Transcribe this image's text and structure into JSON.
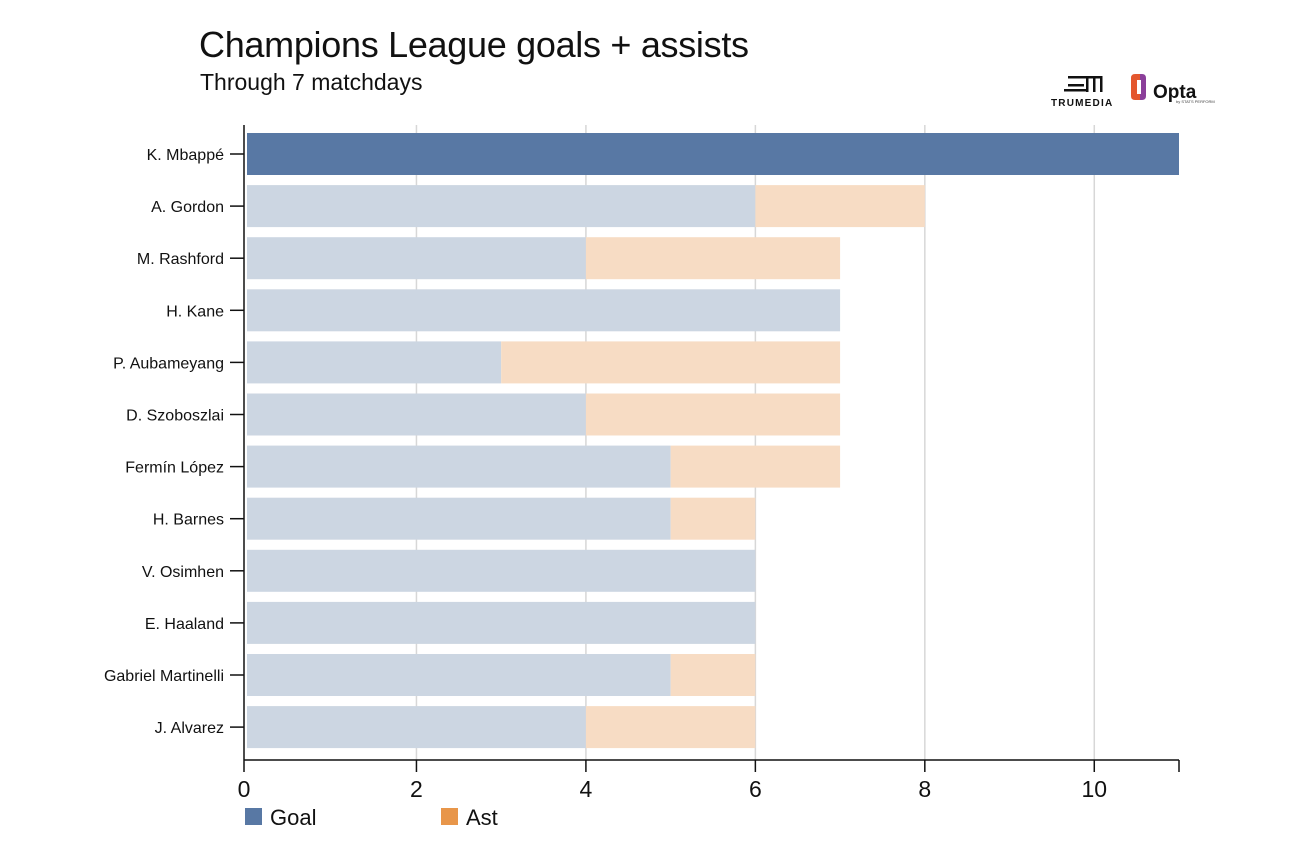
{
  "header": {
    "title": "Champions League goals + assists",
    "subtitle": "Through 7 matchdays"
  },
  "logos": {
    "trumedia": "TRUMEDIA",
    "opta": "Opta",
    "opta_sub": "by STATS PERFORM"
  },
  "colors": {
    "goal": "#5878a4",
    "goal_faded": "#ccd6e2",
    "ast": "#e8964a",
    "ast_faded": "#f7dcc4",
    "grid": "#d7d7d7",
    "axis": "#111111"
  },
  "chart_data": {
    "type": "bar",
    "orientation": "horizontal",
    "stacked": true,
    "categories": [
      "K. Mbappé",
      "A. Gordon",
      "M. Rashford",
      "H. Kane",
      "P. Aubameyang",
      "D. Szoboszlai",
      "Fermín López",
      "H. Barnes",
      "V. Osimhen",
      "E. Haaland",
      "Gabriel Martinelli",
      "J. Alvarez"
    ],
    "series": [
      {
        "name": "Goal",
        "values": [
          11,
          6,
          4,
          7,
          3,
          4,
          5,
          5,
          6,
          6,
          5,
          4
        ]
      },
      {
        "name": "Ast",
        "values": [
          0,
          2,
          3,
          0,
          4,
          3,
          2,
          1,
          0,
          0,
          1,
          2
        ]
      }
    ],
    "highlighted": [
      "K. Mbappé"
    ],
    "xlim": [
      0,
      11
    ],
    "xticks": [
      0,
      2,
      4,
      6,
      8,
      10
    ],
    "grid": true,
    "legend_position": "bottom-left"
  }
}
